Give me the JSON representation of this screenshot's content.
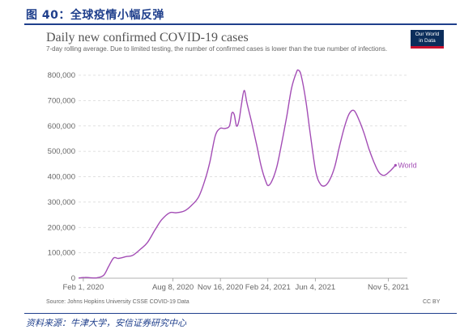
{
  "figure": {
    "label": "图 40：全球疫情小幅反弹",
    "footer": "资料来源：牛津大学，安信证券研究中心"
  },
  "chart": {
    "logo_line1": "Our World",
    "logo_line2": "in Data",
    "source": "Source: Johns Hopkins University CSSE COVID-19 Data",
    "license": "CC BY"
  },
  "colors": {
    "series": "#a34db5",
    "accent": "#1f3f8c",
    "grid": "#d6d6d6"
  },
  "chart_data": {
    "type": "line",
    "title": "Daily new confirmed COVID-19 cases",
    "subtitle": "7-day rolling average. Due to limited testing, the number of confirmed cases is lower than the true number of infections.",
    "xlabel": "",
    "ylabel": "",
    "ylim": [
      0,
      800000
    ],
    "xlim": [
      "2020-01-22",
      "2021-12-15"
    ],
    "yticks": [
      0,
      100000,
      200000,
      300000,
      400000,
      500000,
      600000,
      700000,
      800000
    ],
    "ytick_labels": [
      "0",
      "100,000",
      "200,000",
      "300,000",
      "400,000",
      "500,000",
      "600,000",
      "700,000",
      "800,000"
    ],
    "xticks": [
      "2020-02-01",
      "2020-08-08",
      "2020-11-16",
      "2021-02-24",
      "2021-06-04",
      "2021-11-05"
    ],
    "xtick_labels": [
      "Feb 1, 2020",
      "Aug 8, 2020",
      "Nov 16, 2020",
      "Feb 24, 2021",
      "Jun 4, 2021",
      "Nov 5, 2021"
    ],
    "grid": true,
    "series": [
      {
        "name": "World",
        "x": [
          "2020-01-22",
          "2020-02-05",
          "2020-02-15",
          "2020-03-01",
          "2020-03-15",
          "2020-03-25",
          "2020-04-05",
          "2020-04-15",
          "2020-05-01",
          "2020-05-15",
          "2020-06-01",
          "2020-06-15",
          "2020-07-01",
          "2020-07-15",
          "2020-08-01",
          "2020-08-15",
          "2020-09-01",
          "2020-09-15",
          "2020-10-01",
          "2020-10-15",
          "2020-10-25",
          "2020-11-05",
          "2020-11-15",
          "2020-11-25",
          "2020-12-05",
          "2020-12-10",
          "2020-12-15",
          "2020-12-20",
          "2020-12-25",
          "2020-12-30",
          "2021-01-05",
          "2021-01-11",
          "2021-01-20",
          "2021-02-01",
          "2021-02-10",
          "2021-02-20",
          "2021-02-25",
          "2021-03-05",
          "2021-03-15",
          "2021-03-25",
          "2021-04-05",
          "2021-04-15",
          "2021-04-25",
          "2021-04-29",
          "2021-05-05",
          "2021-05-15",
          "2021-05-25",
          "2021-06-05",
          "2021-06-15",
          "2021-06-25",
          "2021-07-05",
          "2021-07-15",
          "2021-07-25",
          "2021-08-05",
          "2021-08-15",
          "2021-08-25",
          "2021-09-05",
          "2021-09-15",
          "2021-09-25",
          "2021-10-05",
          "2021-10-15",
          "2021-10-25",
          "2021-11-01",
          "2021-11-10",
          "2021-11-20"
        ],
        "y": [
          500,
          3000,
          2000,
          1500,
          12000,
          45000,
          80000,
          78000,
          85000,
          90000,
          115000,
          140000,
          190000,
          230000,
          258000,
          258000,
          265000,
          285000,
          320000,
          390000,
          460000,
          560000,
          590000,
          590000,
          600000,
          650000,
          645000,
          600000,
          620000,
          680000,
          740000,
          690000,
          620000,
          520000,
          440000,
          380000,
          365000,
          385000,
          440000,
          530000,
          640000,
          750000,
          810000,
          820000,
          800000,
          700000,
          560000,
          420000,
          370000,
          365000,
          390000,
          440000,
          520000,
          600000,
          650000,
          660000,
          620000,
          570000,
          510000,
          460000,
          420000,
          405000,
          410000,
          425000,
          445000
        ]
      }
    ]
  }
}
